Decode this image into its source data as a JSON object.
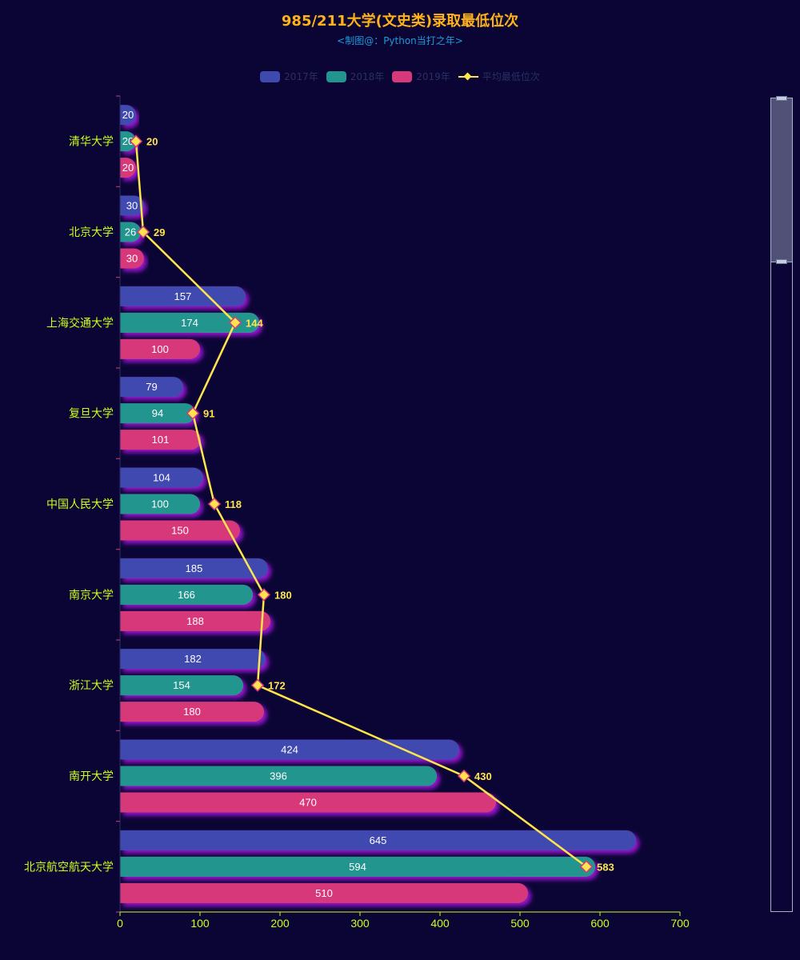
{
  "header": {
    "title": "985/211大学(文史类)录取最低位次",
    "subtitle": "<制图@：Python当打之年>"
  },
  "legend": {
    "items": [
      {
        "label": "2017年",
        "color": "#3f4aaf"
      },
      {
        "label": "2018年",
        "color": "#23958f"
      },
      {
        "label": "2019年",
        "color": "#d7397a"
      },
      {
        "label": "平均最低位次",
        "color": "#ffe44d"
      }
    ]
  },
  "colors": {
    "background": "#0b0535",
    "category_label": "#ccff1a",
    "axis": "#ccff1a",
    "bar_label": "#ffffff",
    "line": "#ffe44d",
    "line_label": "#ffe44d",
    "marker_border": "#d7397a"
  },
  "chart_data": {
    "type": "bar",
    "orientation": "horizontal",
    "categories": [
      "清华大学",
      "北京大学",
      "上海交通大学",
      "复旦大学",
      "中国人民大学",
      "南京大学",
      "浙江大学",
      "南开大学",
      "北京航空航天大学"
    ],
    "series": [
      {
        "name": "2017年",
        "type": "bar",
        "values": [
          20,
          30,
          157,
          79,
          104,
          185,
          182,
          424,
          645
        ]
      },
      {
        "name": "2018年",
        "type": "bar",
        "values": [
          20,
          26,
          174,
          94,
          100,
          166,
          154,
          396,
          594
        ]
      },
      {
        "name": "2019年",
        "type": "bar",
        "values": [
          20,
          30,
          100,
          101,
          150,
          188,
          180,
          470,
          510
        ]
      },
      {
        "name": "平均最低位次",
        "type": "line",
        "values": [
          20,
          29,
          144,
          91,
          118,
          180,
          172,
          430,
          583
        ]
      }
    ],
    "xlim": [
      0,
      700
    ],
    "xticks": [
      0,
      100,
      200,
      300,
      400,
      500,
      600,
      700
    ],
    "grid": false,
    "legend_position": "top-center"
  },
  "data_zoom": {
    "orientation": "vertical",
    "position": "right",
    "start_percent": 0,
    "end_percent": 20
  }
}
